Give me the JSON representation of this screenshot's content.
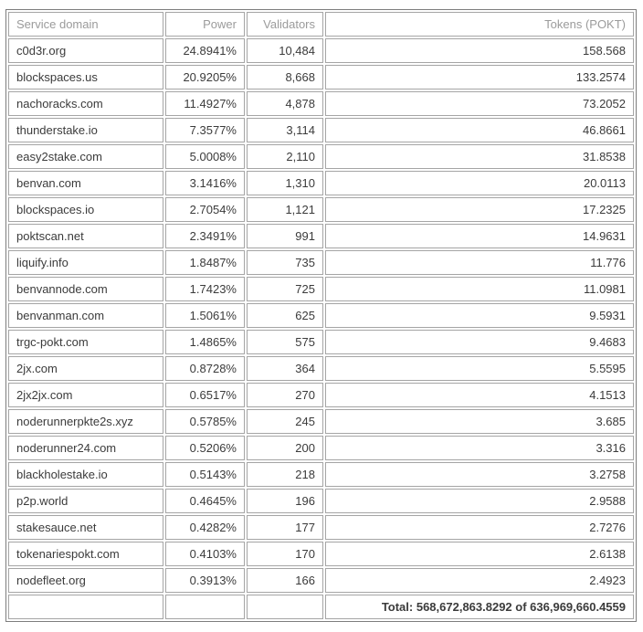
{
  "chart_data": {
    "type": "table",
    "title": "",
    "columns": [
      "Service domain",
      "Power",
      "Validators",
      "Tokens (POKT)"
    ],
    "rows": [
      [
        "c0d3r.org",
        "24.8941%",
        "10,484",
        "158.568"
      ],
      [
        "blockspaces.us",
        "20.9205%",
        "8,668",
        "133.2574"
      ],
      [
        "nachoracks.com",
        "11.4927%",
        "4,878",
        "73.2052"
      ],
      [
        "thunderstake.io",
        "7.3577%",
        "3,114",
        "46.8661"
      ],
      [
        "easy2stake.com",
        "5.0008%",
        "2,110",
        "31.8538"
      ],
      [
        "benvan.com",
        "3.1416%",
        "1,310",
        "20.0113"
      ],
      [
        "blockspaces.io",
        "2.7054%",
        "1,121",
        "17.2325"
      ],
      [
        "poktscan.net",
        "2.3491%",
        "991",
        "14.9631"
      ],
      [
        "liquify.info",
        "1.8487%",
        "735",
        "11.776"
      ],
      [
        "benvannode.com",
        "1.7423%",
        "725",
        "11.0981"
      ],
      [
        "benvanman.com",
        "1.5061%",
        "625",
        "9.5931"
      ],
      [
        "trgc-pokt.com",
        "1.4865%",
        "575",
        "9.4683"
      ],
      [
        "2jx.com",
        "0.8728%",
        "364",
        "5.5595"
      ],
      [
        "2jx2jx.com",
        "0.6517%",
        "270",
        "4.1513"
      ],
      [
        "noderunnerpkte2s.xyz",
        "0.5785%",
        "245",
        "3.685"
      ],
      [
        "noderunner24.com",
        "0.5206%",
        "200",
        "3.316"
      ],
      [
        "blackholestake.io",
        "0.5143%",
        "218",
        "3.2758"
      ],
      [
        "p2p.world",
        "0.4645%",
        "196",
        "2.9588"
      ],
      [
        "stakesauce.net",
        "0.4282%",
        "177",
        "2.7276"
      ],
      [
        "tokenariespokt.com",
        "0.4103%",
        "170",
        "2.6138"
      ],
      [
        "nodefleet.org",
        "0.3913%",
        "166",
        "2.4923"
      ]
    ],
    "total": "Total: 568,672,863.8292 of 636,969,660.4559"
  },
  "colors": {
    "header_text": "#9b9b9b",
    "body_text": "#3b3b3b",
    "outer_border": "#7d7d7d",
    "inner_border": "#a5a5a5",
    "background": "#ffffff"
  }
}
